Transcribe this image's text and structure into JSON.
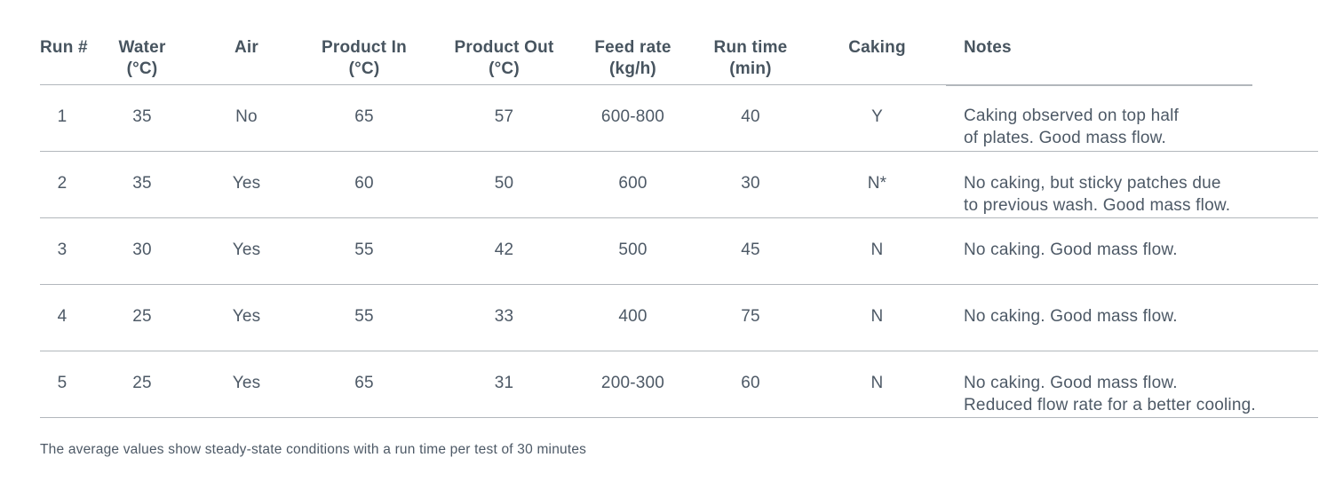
{
  "table": {
    "columns": [
      {
        "id": "run",
        "label": "Run #",
        "unit": ""
      },
      {
        "id": "water",
        "label": "Water",
        "unit": "(°C)"
      },
      {
        "id": "air",
        "label": "Air",
        "unit": ""
      },
      {
        "id": "product_in",
        "label": "Product In",
        "unit": "(°C)"
      },
      {
        "id": "product_out",
        "label": "Product Out",
        "unit": "(°C)"
      },
      {
        "id": "feed_rate",
        "label": "Feed rate",
        "unit": "(kg/h)"
      },
      {
        "id": "run_time",
        "label": "Run time",
        "unit": "(min)"
      },
      {
        "id": "caking",
        "label": "Caking",
        "unit": ""
      },
      {
        "id": "notes",
        "label": "Notes",
        "unit": ""
      }
    ],
    "rows": [
      {
        "run": "1",
        "water": "35",
        "air": "No",
        "product_in": "65",
        "product_out": "57",
        "feed_rate": "600-800",
        "run_time": "40",
        "caking": "Y",
        "notes": [
          "Caking observed on top half",
          "of plates. Good mass flow."
        ]
      },
      {
        "run": "2",
        "water": "35",
        "air": "Yes",
        "product_in": "60",
        "product_out": "50",
        "feed_rate": "600",
        "run_time": "30",
        "caking": "N*",
        "notes": [
          "No caking, but sticky patches due",
          "to previous wash. Good mass flow."
        ]
      },
      {
        "run": "3",
        "water": "30",
        "air": "Yes",
        "product_in": "55",
        "product_out": "42",
        "feed_rate": "500",
        "run_time": "45",
        "caking": "N",
        "notes": [
          "No caking. Good mass flow."
        ]
      },
      {
        "run": "4",
        "water": "25",
        "air": "Yes",
        "product_in": "55",
        "product_out": "33",
        "feed_rate": "400",
        "run_time": "75",
        "caking": "N",
        "notes": [
          "No caking. Good mass flow."
        ]
      },
      {
        "run": "5",
        "water": "25",
        "air": "Yes",
        "product_in": "65",
        "product_out": "31",
        "feed_rate": "200-300",
        "run_time": "60",
        "caking": "N",
        "notes": [
          "No caking. Good mass flow.",
          "Reduced flow rate for a better cooling."
        ]
      }
    ],
    "footnote": "The average values show steady-state conditions with a run time per test of 30 minutes"
  },
  "colors": {
    "text": "#4d5966",
    "header_text": "#47545f",
    "divider_line": "#b2b7bc",
    "background": "#ffffff"
  }
}
